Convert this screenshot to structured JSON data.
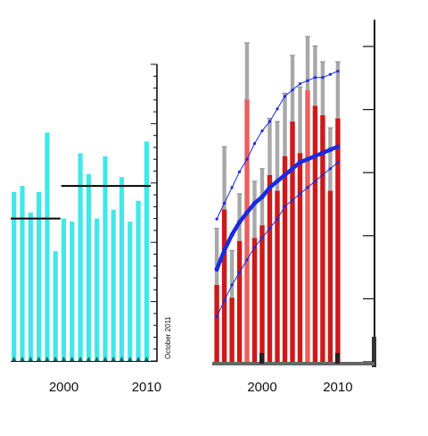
{
  "chart_data": [
    {
      "type": "bar",
      "x": [
        1994,
        1995,
        1996,
        1997,
        1998,
        1999,
        2000,
        2001,
        2002,
        2003,
        2004,
        2005,
        2006,
        2007,
        2008,
        2009,
        2010
      ],
      "values": [
        57,
        59,
        50,
        57,
        77,
        37,
        48,
        47,
        70,
        63,
        48,
        69,
        51,
        62,
        47,
        54,
        74
      ],
      "xticks": [
        2000,
        2010
      ],
      "annotation": "October 2011",
      "ylim": [
        0,
        100
      ],
      "grid": false,
      "reference_lines": [
        {
          "x_start": 1993.6,
          "x_end": 1999.6,
          "y": 48
        },
        {
          "x_start": 1999.7,
          "x_end": 2010.5,
          "y": 59
        }
      ],
      "colors": {
        "bars": "#40e8e8",
        "axis": "#111111",
        "reference": "#000000"
      }
    },
    {
      "type": "bar",
      "x": [
        1994,
        1995,
        1996,
        1997,
        1998,
        1999,
        2000,
        2001,
        2002,
        2003,
        2004,
        2005,
        2006,
        2007,
        2008,
        2009,
        2010
      ],
      "values": [
        25,
        49,
        21,
        39,
        84,
        40,
        44,
        60,
        55,
        66,
        77,
        67,
        87,
        82,
        79,
        55,
        78
      ],
      "error_high": [
        43,
        69,
        36,
        54,
        102,
        58,
        62,
        78,
        77,
        86,
        98,
        88,
        104,
        101,
        96,
        75,
        96
      ],
      "xticks": [
        2000,
        2010
      ],
      "ylim": [
        0,
        100
      ],
      "grid": false,
      "trend_lines": [
        {
          "style": "thick",
          "values": [
            30,
            36,
            41,
            45,
            48,
            51,
            53,
            56,
            58,
            60,
            62,
            64,
            65,
            66,
            67,
            68,
            69
          ]
        },
        {
          "style": "thin-upper",
          "values": [
            46,
            51,
            56,
            61,
            65,
            70,
            74,
            77,
            81,
            85,
            87,
            89,
            90,
            91,
            91,
            92,
            93
          ]
        },
        {
          "style": "thin-lower",
          "values": [
            15,
            20,
            25,
            29,
            33,
            37,
            40,
            43,
            46,
            50,
            52,
            54,
            56,
            58,
            60,
            62,
            64
          ]
        }
      ],
      "colors": {
        "bars": "#cc1a1a",
        "bars_pale": "#e86060",
        "error": "#a8a8a8",
        "trend": "#1a2be0",
        "axis": "#111111",
        "baseline": "#666666"
      }
    }
  ]
}
